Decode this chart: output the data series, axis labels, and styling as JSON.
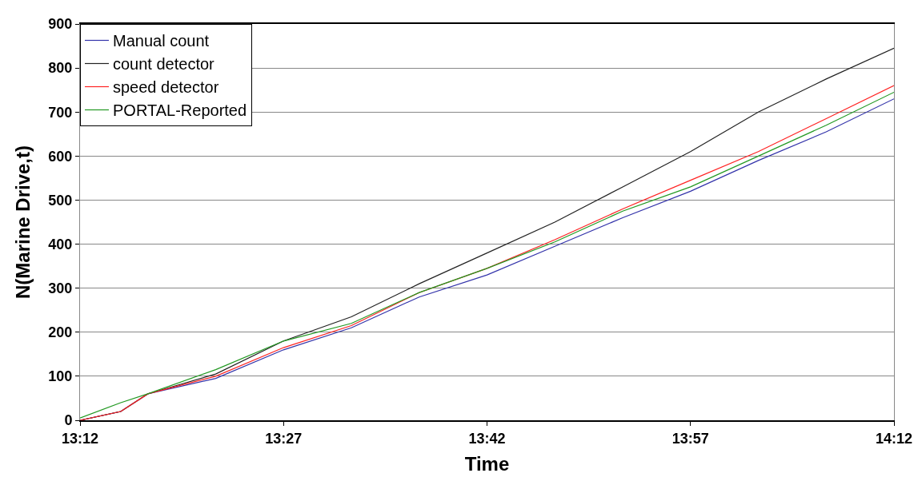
{
  "chart_data": {
    "type": "line",
    "xlabel": "Time",
    "ylabel": "N(Marine Drive,t)",
    "x": [
      13.2,
      13.25,
      13.2833,
      13.3667,
      13.45,
      13.5333,
      13.6167,
      13.7,
      13.7833,
      13.8667,
      13.95,
      14.0333,
      14.1167,
      14.2
    ],
    "xlim": [
      13.2,
      14.2
    ],
    "xticks": [
      {
        "value": 13.2,
        "label": "13:12"
      },
      {
        "value": 13.45,
        "label": "13:27"
      },
      {
        "value": 13.7,
        "label": "13:42"
      },
      {
        "value": 13.95,
        "label": "13:57"
      },
      {
        "value": 14.2,
        "label": "14:12"
      }
    ],
    "ylim": [
      0,
      900
    ],
    "yticks": [
      0,
      100,
      200,
      300,
      400,
      500,
      600,
      700,
      800,
      900
    ],
    "grid": "y",
    "legend": "top left",
    "marker": "none",
    "line_style": "solid",
    "series": [
      {
        "name": "Manual count",
        "color": "#3333aa",
        "values": [
          0,
          20,
          60,
          95,
          160,
          210,
          280,
          330,
          395,
          460,
          520,
          590,
          655,
          730
        ]
      },
      {
        "name": "count detector",
        "color": "#222222",
        "values": [
          0,
          20,
          60,
          105,
          180,
          235,
          310,
          380,
          450,
          530,
          610,
          700,
          775,
          845
        ]
      },
      {
        "name": "speed detector",
        "color": "#ff2222",
        "values": [
          0,
          20,
          60,
          100,
          165,
          215,
          290,
          345,
          410,
          480,
          545,
          610,
          685,
          760
        ]
      },
      {
        "name": "PORTAL-Reported",
        "color": "#229922",
        "values": [
          5,
          40,
          60,
          115,
          180,
          220,
          290,
          345,
          405,
          475,
          530,
          600,
          670,
          745
        ]
      }
    ]
  }
}
